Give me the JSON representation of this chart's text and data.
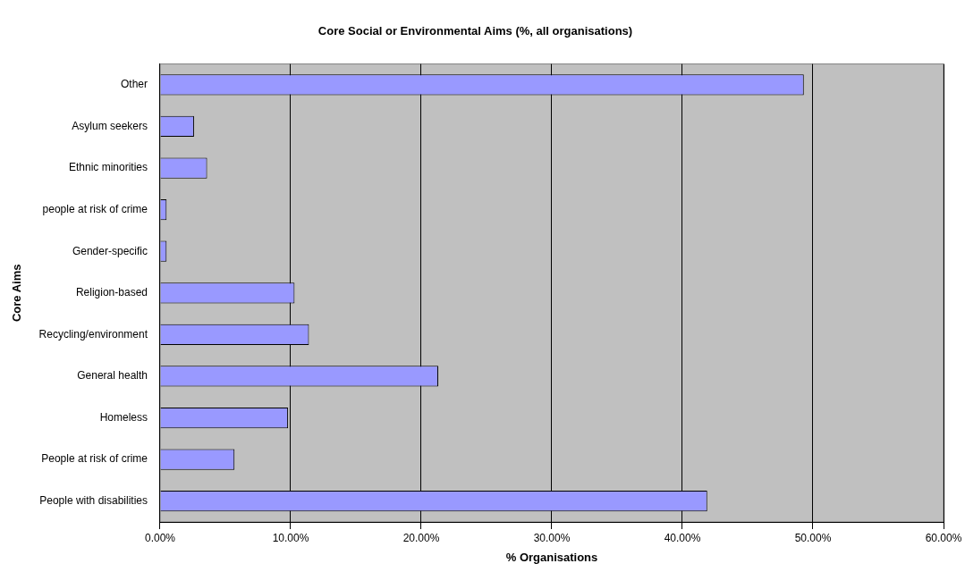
{
  "chart_data": {
    "type": "bar",
    "orientation": "horizontal",
    "title": "Core Social or Environmental Aims (%, all organisations)",
    "xlabel": "% Organisations",
    "ylabel": "Core Aims",
    "categories": [
      "Other",
      "Asylum seekers",
      "Ethnic minorities",
      "people at risk of crime",
      "Gender-specific",
      "Religion-based",
      "Recycling/environment",
      "General health",
      "Homeless",
      "People at risk of crime",
      "People with disabilities"
    ],
    "values": [
      49.3,
      2.6,
      3.6,
      0.5,
      0.5,
      10.3,
      11.4,
      21.3,
      9.8,
      5.7,
      41.9
    ],
    "color": "#9999ff",
    "xlim": [
      0,
      60
    ],
    "xticks": [
      {
        "value": 0,
        "label": "0.00%"
      },
      {
        "value": 10,
        "label": "10.00%"
      },
      {
        "value": 20,
        "label": "20.00%"
      },
      {
        "value": 30,
        "label": "30.00%"
      },
      {
        "value": 40,
        "label": "40.00%"
      },
      {
        "value": 50,
        "label": "50.00%"
      },
      {
        "value": 60,
        "label": "60.00%"
      }
    ],
    "grid": "x",
    "legend": false
  }
}
